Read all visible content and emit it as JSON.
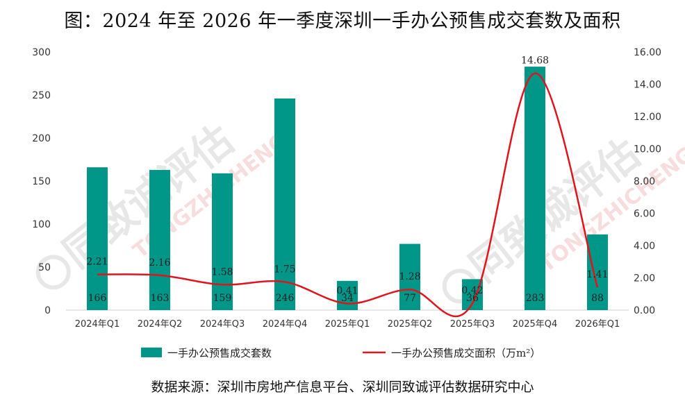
{
  "title": "图：2024 年至 2026 年一季度深圳一手办公预售成交套数及面积",
  "source": "数据来源：深圳市房地产信息平台、深圳同致诚评估数据研究中心",
  "watermark": {
    "cn": "同致诚评估",
    "en": "TONGZHICHENG"
  },
  "colors": {
    "bar": "#009688",
    "line": "#E0141C",
    "watermark_cn": "#d5d5d5",
    "watermark_en": "#f3c3c5"
  },
  "chart_data": {
    "type": "bar",
    "categories": [
      "2024年Q1",
      "2024年Q2",
      "2024年Q3",
      "2024年Q4",
      "2025年Q1",
      "2025年Q2",
      "2025年Q3",
      "2025年Q4",
      "2026年Q1"
    ],
    "series": [
      {
        "name": "一手办公预售成交套数",
        "type": "bar",
        "axis": "left",
        "values": [
          166,
          163,
          159,
          246,
          34,
          77,
          36,
          283,
          88
        ],
        "labels": [
          "166",
          "163",
          "159",
          "246",
          "34",
          "77",
          "36",
          "283",
          "88"
        ]
      },
      {
        "name": "一手办公预售成交面积（万m²）",
        "type": "line",
        "axis": "right",
        "smooth": true,
        "values": [
          2.21,
          2.16,
          1.58,
          1.75,
          0.41,
          1.28,
          0.42,
          14.68,
          1.41
        ],
        "labels": [
          "2.21",
          "2.16",
          "1.58",
          "1.75",
          "0.41",
          "1.28",
          "0.42",
          "14.68",
          "1.41"
        ]
      }
    ],
    "y_left": {
      "min": 0,
      "max": 300,
      "ticks": [
        "0",
        "50",
        "100",
        "150",
        "200",
        "250",
        "300"
      ]
    },
    "y_right": {
      "min": 0,
      "max": 16,
      "ticks": [
        "0.00",
        "2.00",
        "4.00",
        "6.00",
        "8.00",
        "10.00",
        "12.00",
        "14.00",
        "16.00"
      ]
    },
    "grid": false,
    "legend_position": "bottom"
  }
}
